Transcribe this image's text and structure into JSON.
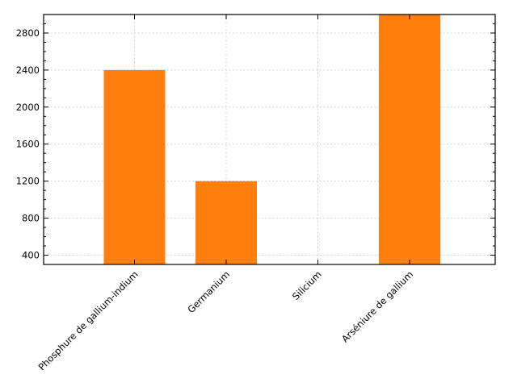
{
  "chart_data": {
    "type": "bar",
    "categories": [
      "Phosphure de gallium-indium",
      "Germanium",
      "Silicium",
      "Arséniure de gallium"
    ],
    "values": [
      2400,
      1200,
      300,
      3000
    ],
    "title": "",
    "xlabel": "",
    "ylabel": "",
    "ylim": [
      300,
      3000
    ],
    "yticks": [
      400,
      800,
      1200,
      1600,
      2000,
      2400,
      2800
    ],
    "grid": true,
    "bar_color": "#ff7f0e"
  }
}
